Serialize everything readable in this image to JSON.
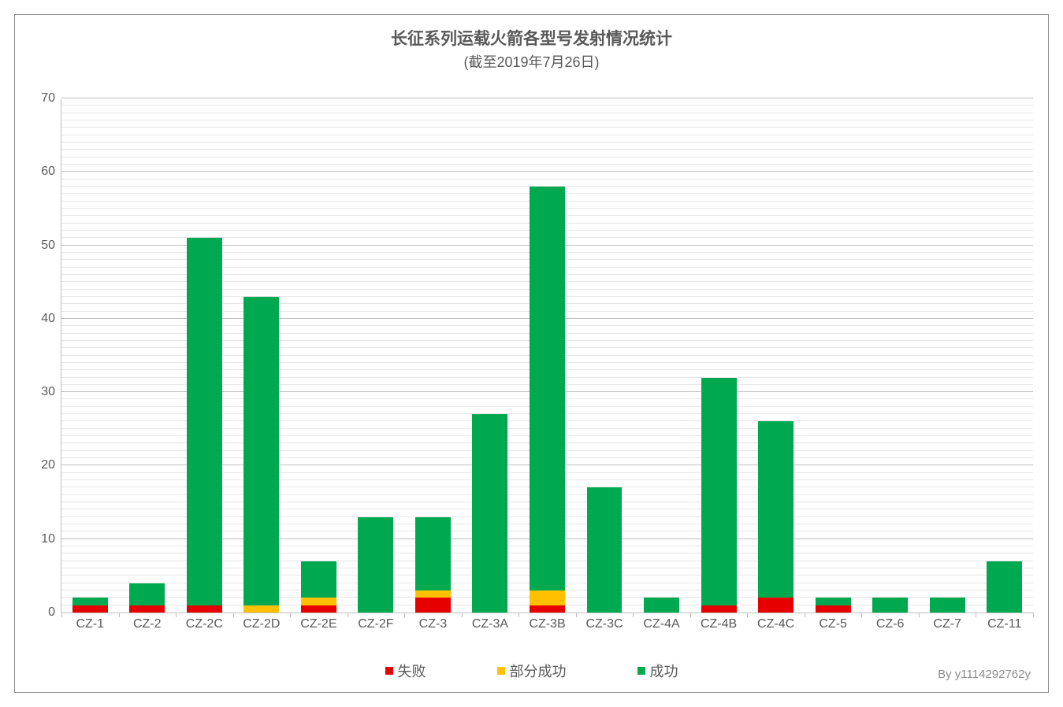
{
  "chart": {
    "type": "stacked-bar",
    "title": "长征系列运载火箭各型号发射情况统计",
    "subtitle": "(截至2019年7月26日)",
    "title_fontsize": 21,
    "title_color": "#595959",
    "subtitle_fontsize": 18,
    "subtitle_color": "#595959",
    "background_color": "#ffffff",
    "border_color": "#8c8c8c",
    "axis_color": "#bfbfbf",
    "major_grid_color": "#bfbfbf",
    "minor_grid_color": "#e6e6e6",
    "tick_label_fontsize": 16,
    "tick_label_color": "#595959",
    "ylim": [
      0,
      70
    ],
    "y_major_step": 10,
    "y_minor_step": 1,
    "bar_fill_ratio": 0.62,
    "categories": [
      "CZ-1",
      "CZ-2",
      "CZ-2C",
      "CZ-2D",
      "CZ-2E",
      "CZ-2F",
      "CZ-3",
      "CZ-3A",
      "CZ-3B",
      "CZ-3C",
      "CZ-4A",
      "CZ-4B",
      "CZ-4C",
      "CZ-5",
      "CZ-6",
      "CZ-7",
      "CZ-11"
    ],
    "series": [
      {
        "key": "fail",
        "label": "失败",
        "color": "#e60000"
      },
      {
        "key": "partial",
        "label": "部分成功",
        "color": "#ffc000"
      },
      {
        "key": "success",
        "label": "成功",
        "color": "#00a850"
      }
    ],
    "data": {
      "fail": [
        1,
        1,
        1,
        0,
        1,
        0,
        2,
        0,
        1,
        0,
        0,
        1,
        2,
        1,
        0,
        0,
        0
      ],
      "partial": [
        0,
        0,
        0,
        1,
        1,
        0,
        1,
        0,
        2,
        0,
        0,
        0,
        0,
        0,
        0,
        0,
        0
      ],
      "success": [
        1,
        3,
        50,
        42,
        5,
        13,
        10,
        27,
        55,
        17,
        2,
        31,
        24,
        1,
        2,
        2,
        7
      ]
    },
    "legend_fontsize": 18,
    "credit": "By y1114292762y",
    "credit_fontsize": 15,
    "credit_color": "#8c8c8c"
  }
}
